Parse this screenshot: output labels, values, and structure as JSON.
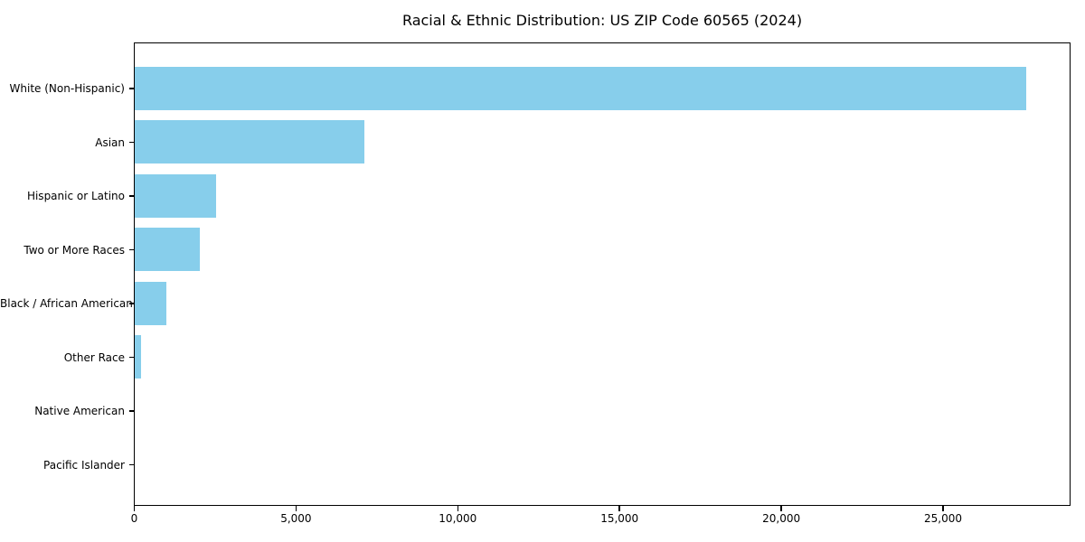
{
  "chart_data": {
    "type": "bar",
    "orientation": "horizontal",
    "title": "Racial & Ethnic Distribution: US ZIP Code 60565 (2024)",
    "categories": [
      "White (Non-Hispanic)",
      "Asian",
      "Hispanic or Latino",
      "Two or More Races",
      "Black / African American",
      "Other Race",
      "Native American",
      "Pacific Islander"
    ],
    "values": [
      27560,
      7100,
      2510,
      2010,
      980,
      200,
      0,
      0
    ],
    "xlabel": "",
    "ylabel": "",
    "xlim": [
      0,
      28940
    ],
    "x_ticks": [
      0,
      5000,
      10000,
      15000,
      20000,
      25000
    ],
    "x_tick_labels": [
      "0",
      "5,000",
      "10,000",
      "15,000",
      "20,000",
      "25,000"
    ],
    "bar_color": "#87CEEB",
    "axis_color": "#000000",
    "background_color": "#ffffff",
    "grid": false,
    "legend": null
  }
}
